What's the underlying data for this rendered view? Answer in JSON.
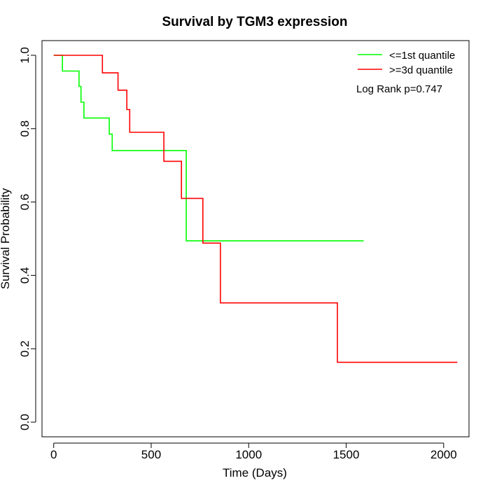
{
  "chart_data": {
    "type": "line",
    "step": true,
    "title": "Survival by TGM3 expression",
    "xlabel": "Time (Days)",
    "ylabel": "Survival Probability",
    "xlim": [
      -60,
      2130
    ],
    "ylim": [
      -0.04,
      1.04
    ],
    "xticks": [
      0,
      500,
      1000,
      1500,
      2000
    ],
    "yticks": [
      0.0,
      0.2,
      0.4,
      0.6,
      0.8,
      1.0
    ],
    "xtick_labels": [
      "0",
      "500",
      "1000",
      "1500",
      "2000"
    ],
    "ytick_labels": [
      "0.0",
      "0.2",
      "0.4",
      "0.6",
      "0.8",
      "1.0"
    ],
    "grid": false,
    "legend_position": "top-right",
    "annotation": "Log Rank p=0.747",
    "series": [
      {
        "name": "<=1st quantile",
        "color": "#00ff00",
        "x": [
          0,
          45,
          130,
          140,
          155,
          285,
          300,
          680,
          1590
        ],
        "y": [
          1.0,
          0.957,
          0.915,
          0.872,
          0.829,
          0.785,
          0.74,
          0.494,
          0.494
        ]
      },
      {
        "name": ">=3d quantile",
        "color": "#ff0000",
        "x": [
          0,
          250,
          330,
          375,
          390,
          565,
          655,
          765,
          855,
          1455,
          2070
        ],
        "y": [
          1.0,
          0.952,
          0.905,
          0.852,
          0.79,
          0.711,
          0.61,
          0.488,
          0.325,
          0.163,
          0.163
        ]
      }
    ]
  }
}
